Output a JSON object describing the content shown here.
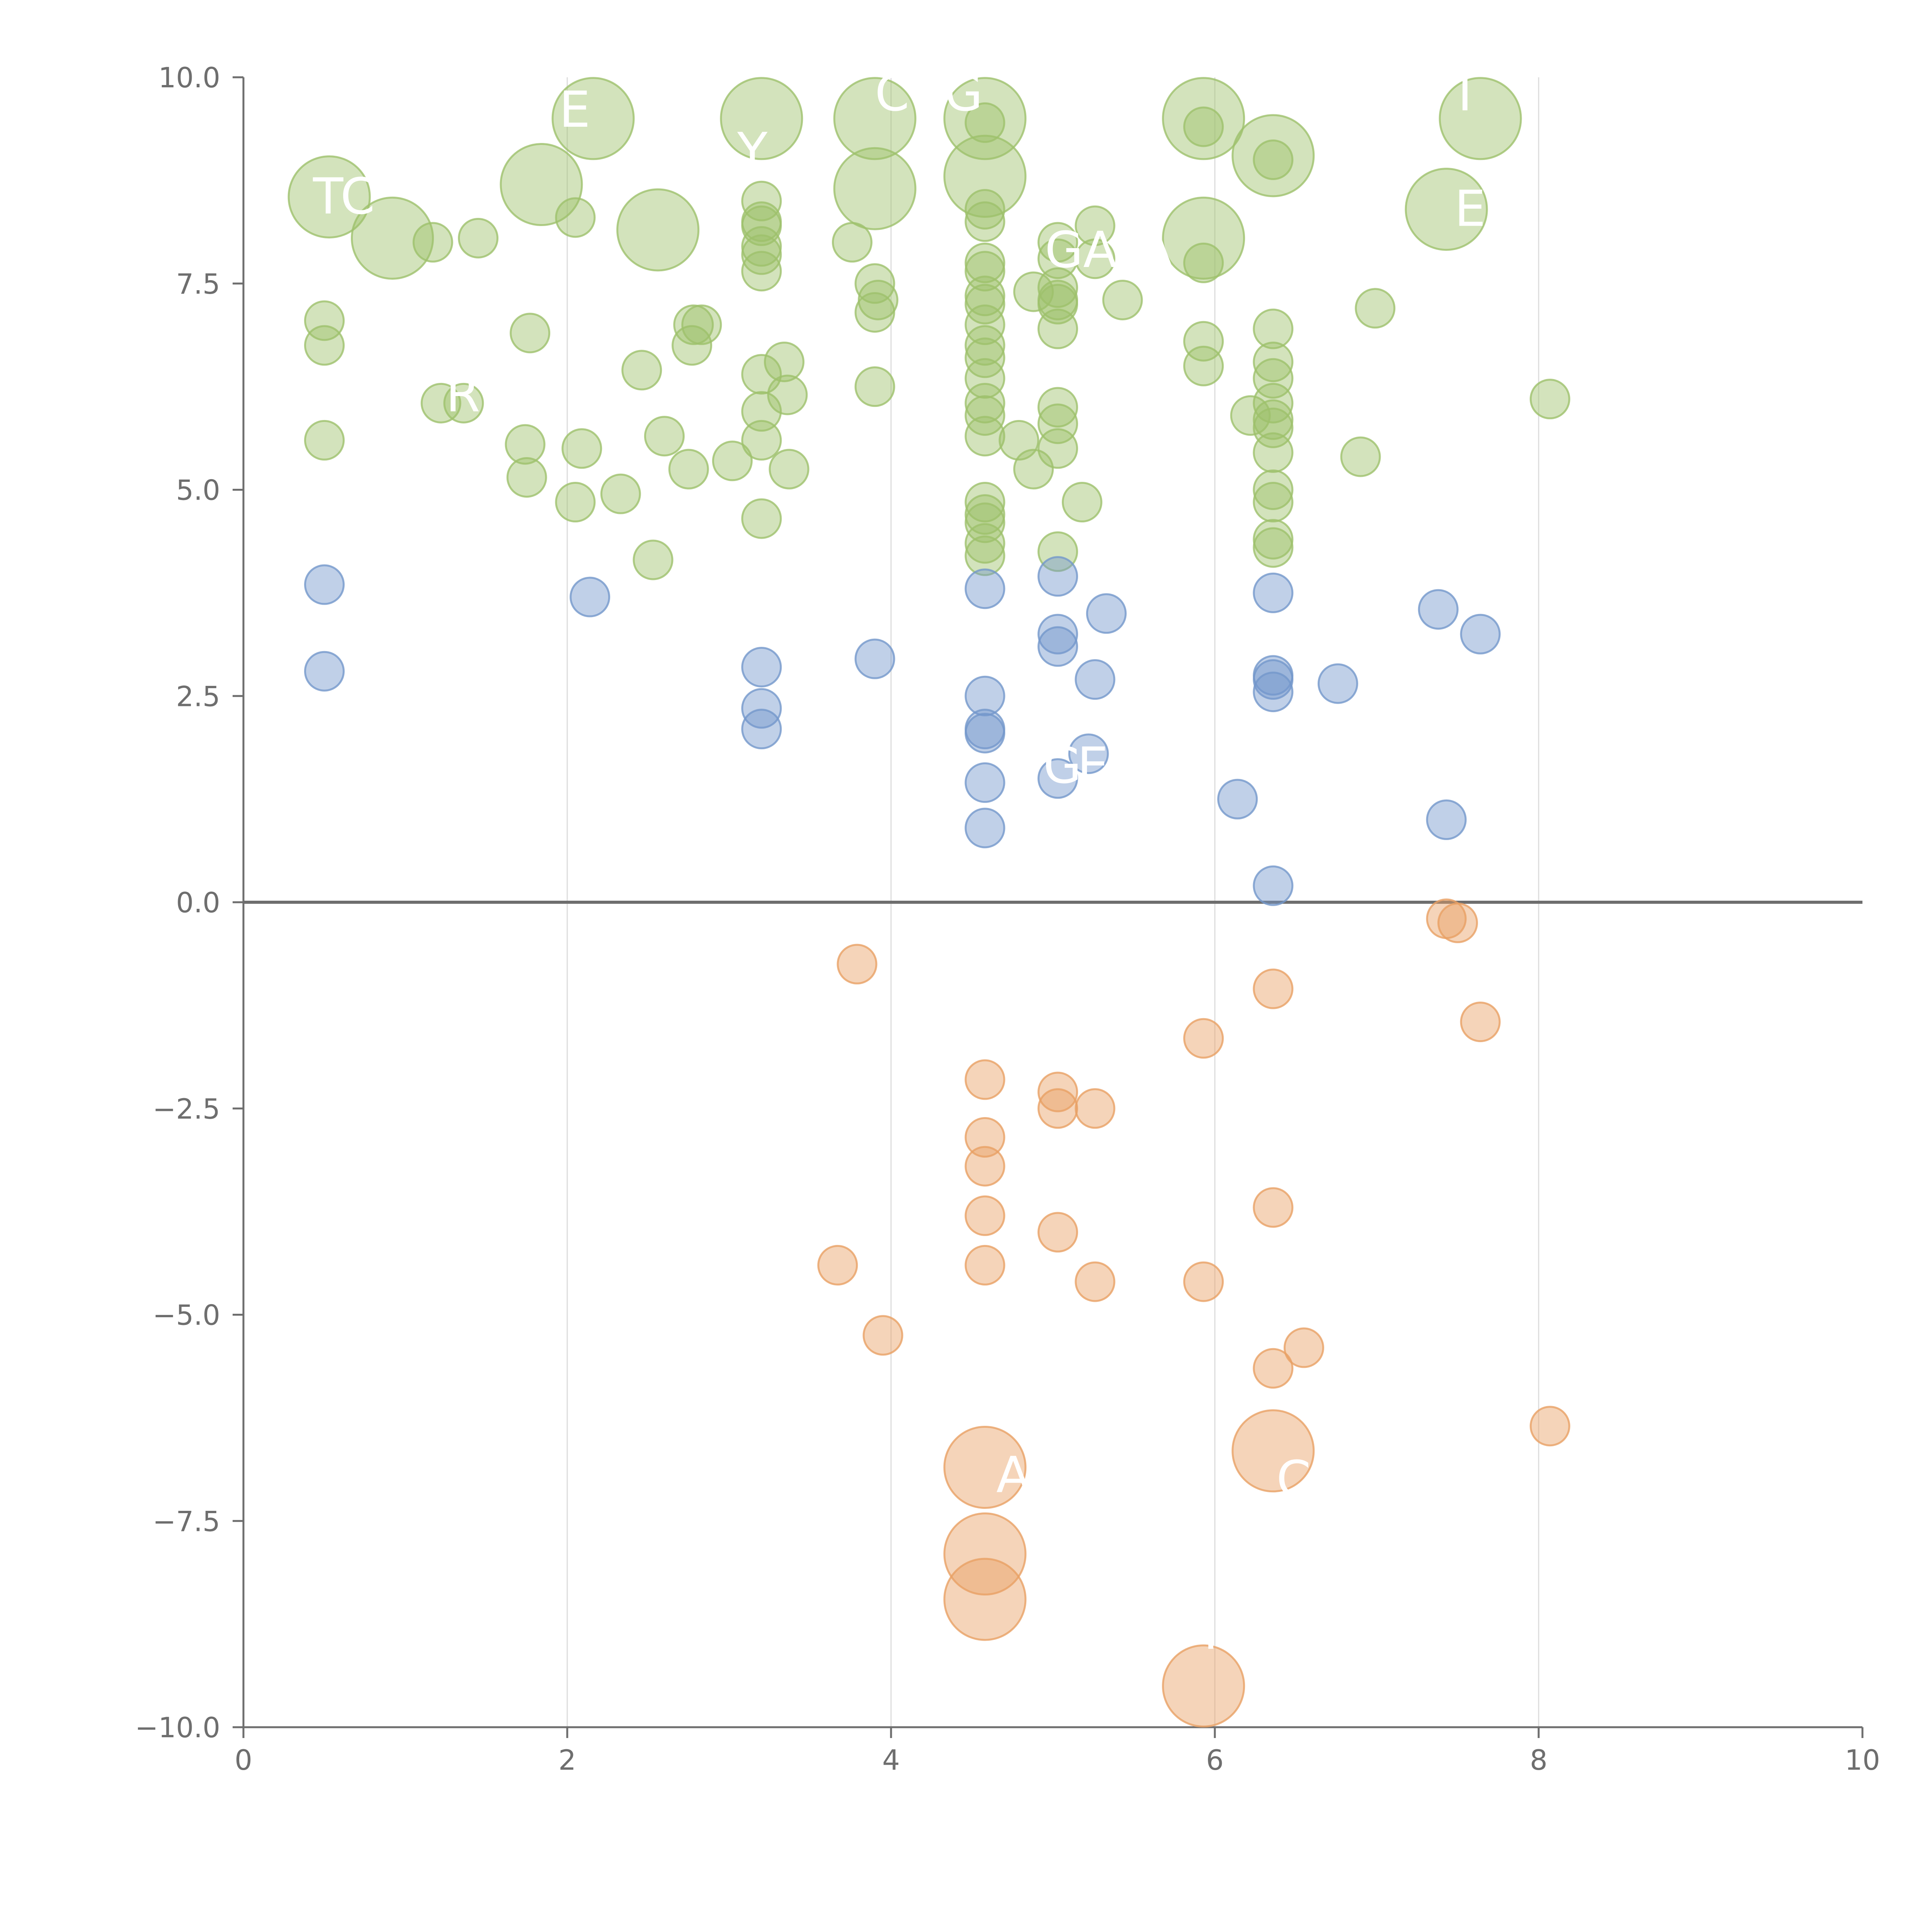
{
  "chart_data": {
    "type": "scatter",
    "title": "",
    "xlabel": "",
    "ylabel": "",
    "xlim": [
      0,
      10
    ],
    "ylim": [
      -10,
      10
    ],
    "x_ticks": [
      "0",
      "2",
      "4",
      "6",
      "8",
      "10"
    ],
    "y_ticks": [
      "−10.0",
      "−7.5",
      "−5.0",
      "−2.5",
      "0.0",
      "2.5",
      "5.0",
      "7.5",
      "10.0"
    ],
    "x_tick_values": [
      0,
      2,
      4,
      6,
      8,
      10
    ],
    "y_tick_values": [
      -10,
      -7.5,
      -5,
      -2.5,
      0,
      2.5,
      5,
      7.5,
      10
    ],
    "vertical_gridlines": [
      2,
      4,
      6,
      8
    ],
    "zero_line": 0,
    "legend": "none",
    "colors": {
      "green": "#9dc16b",
      "blue": "#7397cb",
      "orange": "#e9a064",
      "axis": "#6e6e6e",
      "grid": "#dcdcdc",
      "label": "#ffffff"
    },
    "series": [
      {
        "name": "green",
        "color": "#9dc16b",
        "points": [
          {
            "x": 0.53,
            "y": 8.55,
            "s": 3
          },
          {
            "x": 0.92,
            "y": 8.05,
            "s": 3
          },
          {
            "x": 1.17,
            "y": 8.0,
            "s": 1
          },
          {
            "x": 1.45,
            "y": 8.05,
            "s": 1
          },
          {
            "x": 1.84,
            "y": 8.7,
            "s": 3
          },
          {
            "x": 2.05,
            "y": 8.3,
            "s": 1
          },
          {
            "x": 2.16,
            "y": 9.5,
            "s": 3
          },
          {
            "x": 2.56,
            "y": 8.15,
            "s": 3
          },
          {
            "x": 3.2,
            "y": 9.5,
            "s": 3
          },
          {
            "x": 3.2,
            "y": 8.5,
            "s": 1
          },
          {
            "x": 3.2,
            "y": 8.25,
            "s": 1
          },
          {
            "x": 3.2,
            "y": 8.2,
            "s": 1
          },
          {
            "x": 3.2,
            "y": 7.95,
            "s": 1
          },
          {
            "x": 3.2,
            "y": 7.85,
            "s": 1
          },
          {
            "x": 3.2,
            "y": 7.65,
            "s": 1
          },
          {
            "x": 3.9,
            "y": 9.5,
            "s": 3
          },
          {
            "x": 3.9,
            "y": 8.65,
            "s": 3
          },
          {
            "x": 3.76,
            "y": 8.0,
            "s": 1
          },
          {
            "x": 3.9,
            "y": 7.5,
            "s": 1
          },
          {
            "x": 3.92,
            "y": 7.3,
            "s": 1
          },
          {
            "x": 3.9,
            "y": 7.15,
            "s": 1
          },
          {
            "x": 3.9,
            "y": 6.25,
            "s": 1
          },
          {
            "x": 4.58,
            "y": 9.5,
            "s": 3
          },
          {
            "x": 4.58,
            "y": 8.8,
            "s": 3
          },
          {
            "x": 4.58,
            "y": 9.45,
            "s": 1
          },
          {
            "x": 4.58,
            "y": 8.4,
            "s": 1
          },
          {
            "x": 4.58,
            "y": 8.25,
            "s": 1
          },
          {
            "x": 4.58,
            "y": 7.75,
            "s": 1
          },
          {
            "x": 4.58,
            "y": 7.65,
            "s": 1
          },
          {
            "x": 4.58,
            "y": 7.35,
            "s": 1
          },
          {
            "x": 4.58,
            "y": 7.25,
            "s": 1
          },
          {
            "x": 4.58,
            "y": 7.0,
            "s": 1
          },
          {
            "x": 4.58,
            "y": 6.75,
            "s": 1
          },
          {
            "x": 4.58,
            "y": 6.6,
            "s": 1
          },
          {
            "x": 4.58,
            "y": 6.35,
            "s": 1
          },
          {
            "x": 4.58,
            "y": 6.05,
            "s": 1
          },
          {
            "x": 4.58,
            "y": 5.9,
            "s": 1
          },
          {
            "x": 4.58,
            "y": 5.65,
            "s": 1
          },
          {
            "x": 4.58,
            "y": 4.85,
            "s": 1
          },
          {
            "x": 4.58,
            "y": 4.7,
            "s": 1
          },
          {
            "x": 4.58,
            "y": 4.6,
            "s": 1
          },
          {
            "x": 4.58,
            "y": 4.35,
            "s": 1
          },
          {
            "x": 4.58,
            "y": 4.2,
            "s": 1
          },
          {
            "x": 4.79,
            "y": 5.6,
            "s": 1
          },
          {
            "x": 4.88,
            "y": 5.25,
            "s": 1
          },
          {
            "x": 4.88,
            "y": 7.4,
            "s": 1
          },
          {
            "x": 5.03,
            "y": 8.0,
            "s": 1
          },
          {
            "x": 5.03,
            "y": 7.8,
            "s": 1
          },
          {
            "x": 5.03,
            "y": 7.45,
            "s": 1
          },
          {
            "x": 5.03,
            "y": 7.3,
            "s": 1
          },
          {
            "x": 5.03,
            "y": 7.25,
            "s": 1
          },
          {
            "x": 5.03,
            "y": 6.95,
            "s": 1
          },
          {
            "x": 5.03,
            "y": 6.0,
            "s": 1
          },
          {
            "x": 5.03,
            "y": 5.8,
            "s": 1
          },
          {
            "x": 5.03,
            "y": 5.5,
            "s": 1
          },
          {
            "x": 5.03,
            "y": 4.25,
            "s": 1
          },
          {
            "x": 5.18,
            "y": 4.85,
            "s": 1
          },
          {
            "x": 5.26,
            "y": 8.2,
            "s": 1
          },
          {
            "x": 5.26,
            "y": 7.8,
            "s": 1
          },
          {
            "x": 5.43,
            "y": 7.3,
            "s": 1
          },
          {
            "x": 5.93,
            "y": 9.5,
            "s": 3
          },
          {
            "x": 5.93,
            "y": 8.05,
            "s": 3
          },
          {
            "x": 5.93,
            "y": 9.4,
            "s": 1
          },
          {
            "x": 5.93,
            "y": 7.75,
            "s": 1
          },
          {
            "x": 5.93,
            "y": 6.8,
            "s": 1
          },
          {
            "x": 5.93,
            "y": 6.5,
            "s": 1
          },
          {
            "x": 6.36,
            "y": 9.05,
            "s": 3
          },
          {
            "x": 6.36,
            "y": 9.0,
            "s": 1
          },
          {
            "x": 6.36,
            "y": 6.95,
            "s": 1
          },
          {
            "x": 6.36,
            "y": 6.55,
            "s": 1
          },
          {
            "x": 6.36,
            "y": 6.35,
            "s": 1
          },
          {
            "x": 6.36,
            "y": 6.05,
            "s": 1
          },
          {
            "x": 6.36,
            "y": 5.85,
            "s": 1
          },
          {
            "x": 6.36,
            "y": 5.75,
            "s": 1
          },
          {
            "x": 6.36,
            "y": 5.45,
            "s": 1
          },
          {
            "x": 6.36,
            "y": 5.0,
            "s": 1
          },
          {
            "x": 6.36,
            "y": 4.85,
            "s": 1
          },
          {
            "x": 6.36,
            "y": 4.4,
            "s": 1
          },
          {
            "x": 6.36,
            "y": 4.3,
            "s": 1
          },
          {
            "x": 6.22,
            "y": 5.9,
            "s": 1
          },
          {
            "x": 6.9,
            "y": 5.4,
            "s": 1
          },
          {
            "x": 6.99,
            "y": 7.2,
            "s": 1
          },
          {
            "x": 7.43,
            "y": 8.4,
            "s": 3
          },
          {
            "x": 7.64,
            "y": 9.5,
            "s": 3
          },
          {
            "x": 8.07,
            "y": 6.1,
            "s": 1
          },
          {
            "x": 0.5,
            "y": 7.05,
            "s": 1
          },
          {
            "x": 0.5,
            "y": 6.75,
            "s": 1
          },
          {
            "x": 0.5,
            "y": 5.6,
            "s": 1
          },
          {
            "x": 1.22,
            "y": 6.05,
            "s": 1
          },
          {
            "x": 1.36,
            "y": 6.05,
            "s": 1
          },
          {
            "x": 1.77,
            "y": 6.9,
            "s": 1
          },
          {
            "x": 1.74,
            "y": 5.55,
            "s": 1
          },
          {
            "x": 1.75,
            "y": 5.15,
            "s": 1
          },
          {
            "x": 2.05,
            "y": 4.85,
            "s": 1
          },
          {
            "x": 2.09,
            "y": 5.5,
            "s": 1
          },
          {
            "x": 2.33,
            "y": 4.95,
            "s": 1
          },
          {
            "x": 2.46,
            "y": 6.45,
            "s": 1
          },
          {
            "x": 2.53,
            "y": 4.15,
            "s": 1
          },
          {
            "x": 2.6,
            "y": 5.65,
            "s": 1
          },
          {
            "x": 2.75,
            "y": 5.25,
            "s": 1
          },
          {
            "x": 2.77,
            "y": 6.75,
            "s": 1
          },
          {
            "x": 2.78,
            "y": 7.0,
            "s": 1
          },
          {
            "x": 2.83,
            "y": 7.0,
            "s": 1
          },
          {
            "x": 3.02,
            "y": 5.35,
            "s": 1
          },
          {
            "x": 3.2,
            "y": 6.4,
            "s": 1
          },
          {
            "x": 3.2,
            "y": 5.95,
            "s": 1
          },
          {
            "x": 3.2,
            "y": 5.6,
            "s": 1
          },
          {
            "x": 3.2,
            "y": 4.65,
            "s": 1
          },
          {
            "x": 3.34,
            "y": 6.55,
            "s": 1
          },
          {
            "x": 3.36,
            "y": 6.15,
            "s": 1
          },
          {
            "x": 3.37,
            "y": 5.25,
            "s": 1
          }
        ]
      },
      {
        "name": "blue",
        "color": "#7397cb",
        "points": [
          {
            "x": 0.5,
            "y": 3.85,
            "s": 1
          },
          {
            "x": 0.5,
            "y": 2.8,
            "s": 1
          },
          {
            "x": 2.14,
            "y": 3.7,
            "s": 1
          },
          {
            "x": 3.2,
            "y": 2.85,
            "s": 1
          },
          {
            "x": 3.2,
            "y": 2.35,
            "s": 1
          },
          {
            "x": 3.2,
            "y": 2.1,
            "s": 1
          },
          {
            "x": 3.9,
            "y": 2.95,
            "s": 1
          },
          {
            "x": 4.58,
            "y": 3.8,
            "s": 1
          },
          {
            "x": 4.58,
            "y": 2.5,
            "s": 1
          },
          {
            "x": 4.58,
            "y": 2.1,
            "s": 1
          },
          {
            "x": 4.58,
            "y": 2.05,
            "s": 1
          },
          {
            "x": 4.58,
            "y": 1.45,
            "s": 1
          },
          {
            "x": 4.58,
            "y": 0.9,
            "s": 1
          },
          {
            "x": 5.03,
            "y": 3.95,
            "s": 1
          },
          {
            "x": 5.03,
            "y": 3.25,
            "s": 1
          },
          {
            "x": 5.03,
            "y": 3.1,
            "s": 1
          },
          {
            "x": 5.03,
            "y": 1.5,
            "s": 1
          },
          {
            "x": 5.22,
            "y": 1.8,
            "s": 1
          },
          {
            "x": 5.26,
            "y": 2.7,
            "s": 1
          },
          {
            "x": 5.33,
            "y": 3.5,
            "s": 1
          },
          {
            "x": 6.14,
            "y": 1.25,
            "s": 1
          },
          {
            "x": 6.36,
            "y": 3.75,
            "s": 1
          },
          {
            "x": 6.36,
            "y": 2.75,
            "s": 1
          },
          {
            "x": 6.36,
            "y": 2.7,
            "s": 1
          },
          {
            "x": 6.36,
            "y": 2.55,
            "s": 1
          },
          {
            "x": 6.36,
            "y": 0.2,
            "s": 1
          },
          {
            "x": 6.76,
            "y": 2.65,
            "s": 1
          },
          {
            "x": 7.38,
            "y": 3.55,
            "s": 1
          },
          {
            "x": 7.43,
            "y": 1.0,
            "s": 1
          },
          {
            "x": 7.64,
            "y": 3.25,
            "s": 1
          }
        ]
      },
      {
        "name": "orange",
        "color": "#e9a064",
        "points": [
          {
            "x": 3.79,
            "y": -0.75,
            "s": 1
          },
          {
            "x": 3.67,
            "y": -4.4,
            "s": 1
          },
          {
            "x": 3.95,
            "y": -5.25,
            "s": 1
          },
          {
            "x": 4.58,
            "y": -2.15,
            "s": 1
          },
          {
            "x": 4.58,
            "y": -2.85,
            "s": 1
          },
          {
            "x": 4.58,
            "y": -3.2,
            "s": 1
          },
          {
            "x": 4.58,
            "y": -3.8,
            "s": 1
          },
          {
            "x": 4.58,
            "y": -4.4,
            "s": 1
          },
          {
            "x": 4.58,
            "y": -6.85,
            "s": 3
          },
          {
            "x": 4.58,
            "y": -7.9,
            "s": 3
          },
          {
            "x": 4.58,
            "y": -8.45,
            "s": 3
          },
          {
            "x": 5.03,
            "y": -2.3,
            "s": 1
          },
          {
            "x": 5.03,
            "y": -2.5,
            "s": 1
          },
          {
            "x": 5.03,
            "y": -4.0,
            "s": 1
          },
          {
            "x": 5.26,
            "y": -2.5,
            "s": 1
          },
          {
            "x": 5.26,
            "y": -4.6,
            "s": 1
          },
          {
            "x": 5.93,
            "y": -1.65,
            "s": 1
          },
          {
            "x": 5.93,
            "y": -4.6,
            "s": 1
          },
          {
            "x": 5.93,
            "y": -9.5,
            "s": 3
          },
          {
            "x": 6.36,
            "y": -1.05,
            "s": 1
          },
          {
            "x": 6.36,
            "y": -3.7,
            "s": 1
          },
          {
            "x": 6.36,
            "y": -5.65,
            "s": 1
          },
          {
            "x": 6.36,
            "y": -6.65,
            "s": 3
          },
          {
            "x": 6.55,
            "y": -5.4,
            "s": 1
          },
          {
            "x": 7.43,
            "y": -0.2,
            "s": 1
          },
          {
            "x": 7.5,
            "y": -0.25,
            "s": 1
          },
          {
            "x": 7.64,
            "y": -1.45,
            "s": 1
          },
          {
            "x": 8.07,
            "y": -6.35,
            "s": 1
          }
        ]
      }
    ],
    "annotations": [
      {
        "text": "TC",
        "x": 0.43,
        "y": 8.35
      },
      {
        "text": "E",
        "x": 1.95,
        "y": 9.4
      },
      {
        "text": "R",
        "x": 1.25,
        "y": 5.95
      },
      {
        "text": "Y",
        "x": 3.05,
        "y": 8.9
      },
      {
        "text": "C",
        "x": 3.9,
        "y": 9.6
      },
      {
        "text": "G",
        "x": 4.33,
        "y": 9.6
      },
      {
        "text": "GA",
        "x": 4.95,
        "y": 7.7
      },
      {
        "text": "A",
        "x": 5.53,
        "y": 7.7
      },
      {
        "text": "I",
        "x": 7.5,
        "y": 9.6
      },
      {
        "text": "E",
        "x": 7.48,
        "y": 8.2
      },
      {
        "text": "G",
        "x": 4.94,
        "y": 1.45
      },
      {
        "text": "E",
        "x": 5.15,
        "y": 1.45
      },
      {
        "text": "A",
        "x": 4.65,
        "y": -7.15
      },
      {
        "text": "C",
        "x": 6.38,
        "y": -7.2
      },
      {
        "text": "I",
        "x": 5.93,
        "y": -9.05
      }
    ]
  }
}
